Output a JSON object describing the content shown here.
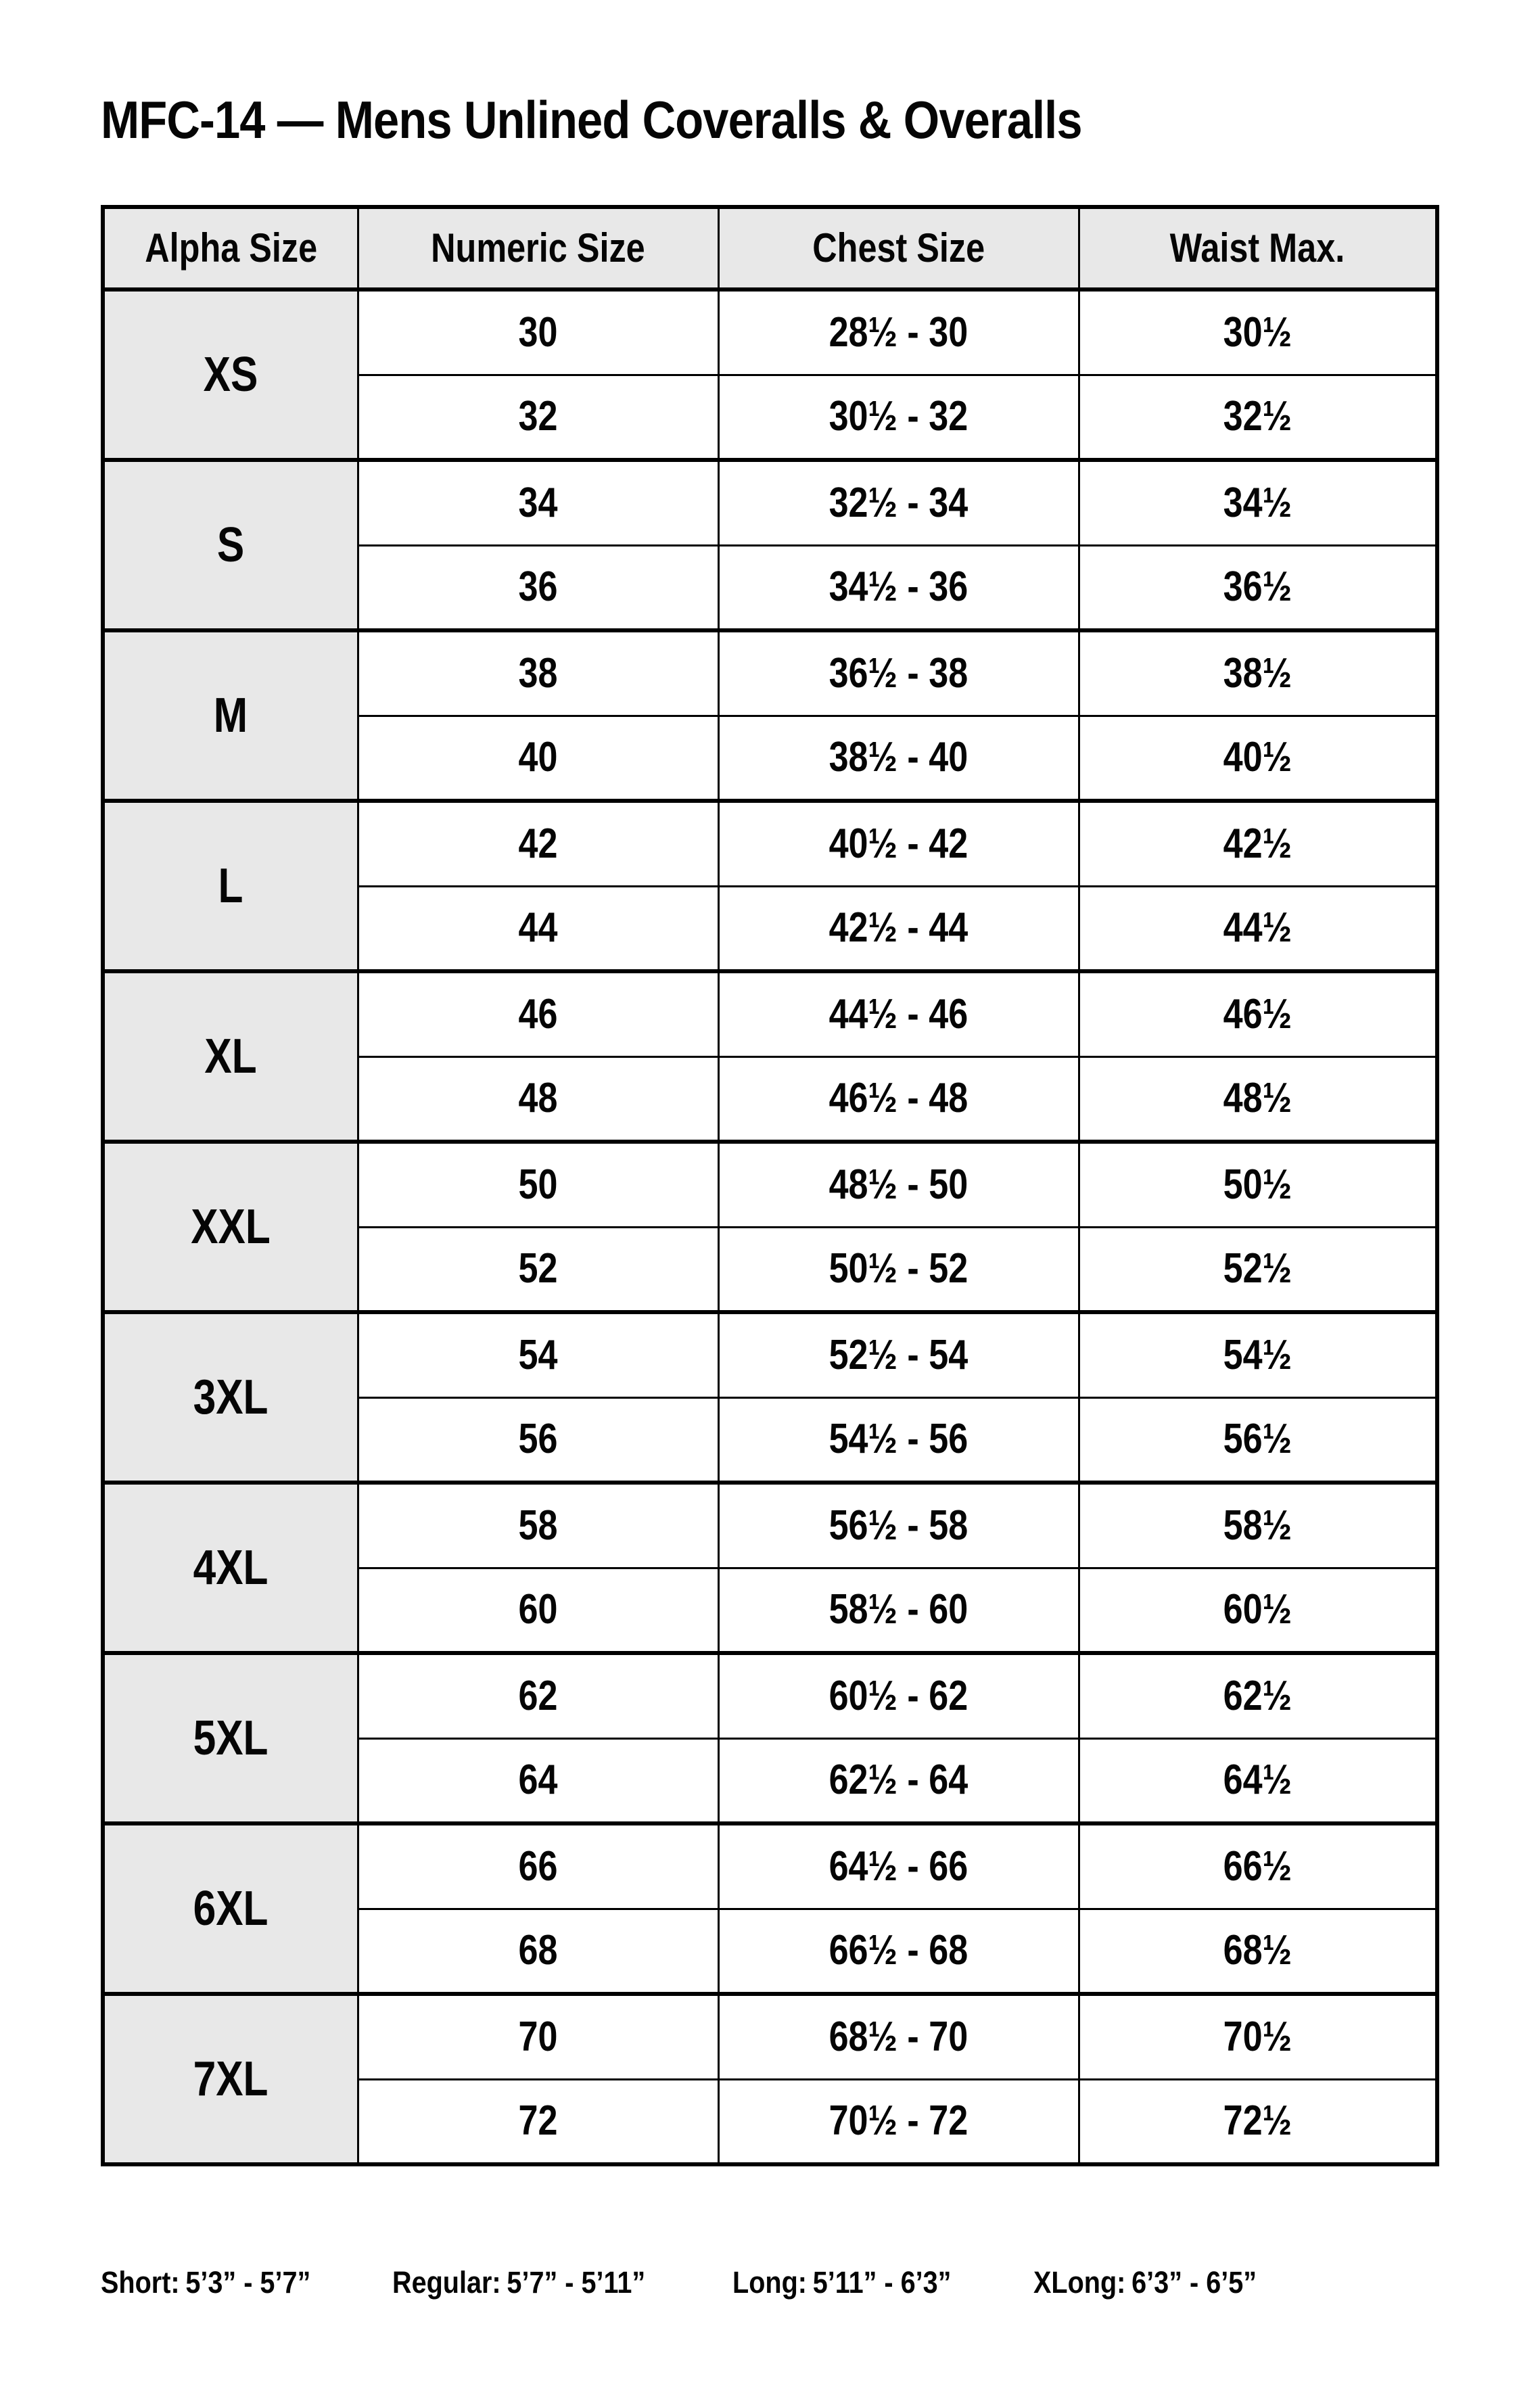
{
  "title": "MFC-14 — Mens Unlined Coveralls & Overalls",
  "colors": {
    "shaded_cell_bg": "#e8e8e8",
    "border": "#000000",
    "text": "#050505",
    "page_bg": "#ffffff"
  },
  "table": {
    "headers": [
      "Alpha Size",
      "Numeric Size",
      "Chest Size",
      "Waist Max."
    ],
    "groups": [
      {
        "alpha": "XS",
        "rows": [
          {
            "numeric": "30",
            "chest": "28½ - 30",
            "waist": "30½"
          },
          {
            "numeric": "32",
            "chest": "30½ - 32",
            "waist": "32½"
          }
        ]
      },
      {
        "alpha": "S",
        "rows": [
          {
            "numeric": "34",
            "chest": "32½ - 34",
            "waist": "34½"
          },
          {
            "numeric": "36",
            "chest": "34½ - 36",
            "waist": "36½"
          }
        ]
      },
      {
        "alpha": "M",
        "rows": [
          {
            "numeric": "38",
            "chest": "36½ - 38",
            "waist": "38½"
          },
          {
            "numeric": "40",
            "chest": "38½ - 40",
            "waist": "40½"
          }
        ]
      },
      {
        "alpha": "L",
        "rows": [
          {
            "numeric": "42",
            "chest": "40½ - 42",
            "waist": "42½"
          },
          {
            "numeric": "44",
            "chest": "42½ - 44",
            "waist": "44½"
          }
        ]
      },
      {
        "alpha": "XL",
        "rows": [
          {
            "numeric": "46",
            "chest": "44½ - 46",
            "waist": "46½"
          },
          {
            "numeric": "48",
            "chest": "46½ - 48",
            "waist": "48½"
          }
        ]
      },
      {
        "alpha": "XXL",
        "rows": [
          {
            "numeric": "50",
            "chest": "48½ - 50",
            "waist": "50½"
          },
          {
            "numeric": "52",
            "chest": "50½ - 52",
            "waist": "52½"
          }
        ]
      },
      {
        "alpha": "3XL",
        "rows": [
          {
            "numeric": "54",
            "chest": "52½ - 54",
            "waist": "54½"
          },
          {
            "numeric": "56",
            "chest": "54½ - 56",
            "waist": "56½"
          }
        ]
      },
      {
        "alpha": "4XL",
        "rows": [
          {
            "numeric": "58",
            "chest": "56½ - 58",
            "waist": "58½"
          },
          {
            "numeric": "60",
            "chest": "58½ - 60",
            "waist": "60½"
          }
        ]
      },
      {
        "alpha": "5XL",
        "rows": [
          {
            "numeric": "62",
            "chest": "60½ - 62",
            "waist": "62½"
          },
          {
            "numeric": "64",
            "chest": "62½ - 64",
            "waist": "64½"
          }
        ]
      },
      {
        "alpha": "6XL",
        "rows": [
          {
            "numeric": "66",
            "chest": "64½ - 66",
            "waist": "66½"
          },
          {
            "numeric": "68",
            "chest": "66½ - 68",
            "waist": "68½"
          }
        ]
      },
      {
        "alpha": "7XL",
        "rows": [
          {
            "numeric": "70",
            "chest": "68½ - 70",
            "waist": "70½"
          },
          {
            "numeric": "72",
            "chest": "70½ - 72",
            "waist": "72½"
          }
        ]
      }
    ]
  },
  "footer": {
    "items": [
      {
        "label": "Short:",
        "value": "5’3” - 5’7”"
      },
      {
        "label": "Regular:",
        "value": "5’7” - 5’11”"
      },
      {
        "label": "Long:",
        "value": "5’11” - 6’3”"
      },
      {
        "label": "XLong:",
        "value": "6’3” - 6’5”"
      }
    ]
  }
}
